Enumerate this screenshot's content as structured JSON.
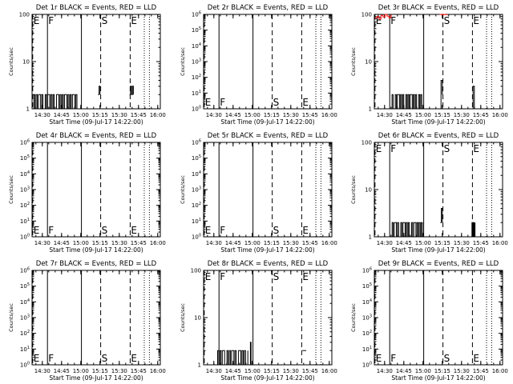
{
  "figure": {
    "x_ticks": [
      "14:30",
      "14:45",
      "15:00",
      "15:15",
      "15:30",
      "15:45",
      "16:00"
    ],
    "x_label": "Start Time (09-Jul-17 14:22:00)",
    "y_label": "Counts/sec",
    "colors": {
      "events": "#000000",
      "lld": "#ff0000",
      "background": "#ffffff"
    }
  },
  "chart_data": [
    {
      "type": "line",
      "title": "Det 1r BLACK = Events, RED = LLD",
      "yscale": "log",
      "ylim": [
        1,
        100
      ],
      "y_ticks": [
        "1",
        "10",
        "100"
      ],
      "xlim_minutes": [
        0,
        100
      ],
      "x_tick_minutes": [
        8,
        23,
        38,
        53,
        68,
        83,
        98
      ],
      "vlines": [
        {
          "label": "E",
          "x": 0.5,
          "style": "dashed"
        },
        {
          "label": "F",
          "x": 12,
          "style": "solid"
        },
        {
          "label": "S",
          "x": 53.5,
          "style": "dashed"
        },
        {
          "label": "E",
          "x": 76.5,
          "style": "dashed"
        },
        {
          "label": "",
          "x": 87.5,
          "style": "dotted"
        },
        {
          "label": "",
          "x": 91.5,
          "style": "dotted"
        },
        {
          "label": "",
          "x": 38.5,
          "style": "solid"
        }
      ],
      "series": [
        {
          "name": "Events",
          "color": "#000000",
          "segments": [
            {
              "x_start": 0.5,
              "x_end": 35,
              "values": [
                1,
                2,
                1,
                2,
                1,
                2,
                2,
                1,
                2,
                1,
                1,
                2,
                1,
                2,
                2,
                1,
                2,
                1,
                2,
                1,
                1,
                2,
                2,
                1,
                2,
                1,
                2,
                1,
                2,
                2,
                1,
                2,
                1,
                2,
                1,
                2,
                2,
                1,
                2,
                1
              ]
            },
            {
              "x_start": 51.5,
              "x_end": 53,
              "values": [
                2,
                3,
                2
              ]
            },
            {
              "x_start": 76,
              "x_end": 79,
              "values": [
                2,
                3,
                2,
                3,
                2
              ]
            }
          ]
        }
      ]
    },
    {
      "type": "line",
      "title": "Det 2r BLACK = Events, RED = LLD",
      "yscale": "log",
      "ylim": [
        1,
        1000000
      ],
      "y_ticks": [
        "10^0",
        "10^1",
        "10^2",
        "10^3",
        "10^4",
        "10^5",
        "10^6"
      ],
      "xlim_minutes": [
        0,
        100
      ],
      "x_tick_minutes": [
        8,
        23,
        38,
        53,
        68,
        83,
        98
      ],
      "vlines": [
        {
          "label": "E",
          "x": 0.5,
          "style": "dashed"
        },
        {
          "label": "F",
          "x": 12,
          "style": "solid"
        },
        {
          "label": "S",
          "x": 53.5,
          "style": "dashed"
        },
        {
          "label": "E",
          "x": 76.5,
          "style": "dashed"
        },
        {
          "label": "",
          "x": 87.5,
          "style": "dotted"
        },
        {
          "label": "",
          "x": 91.5,
          "style": "dotted"
        },
        {
          "label": "",
          "x": 38.5,
          "style": "solid"
        }
      ],
      "series": []
    },
    {
      "type": "line",
      "title": "Det 3r BLACK = Events, RED = LLD",
      "yscale": "log",
      "ylim": [
        1,
        100
      ],
      "y_ticks": [
        "1",
        "10",
        "100"
      ],
      "xlim_minutes": [
        0,
        100
      ],
      "x_tick_minutes": [
        8,
        23,
        38,
        53,
        68,
        83,
        98
      ],
      "vlines": [
        {
          "label": "E",
          "x": 0.5,
          "style": "dashed"
        },
        {
          "label": "F",
          "x": 12,
          "style": "solid"
        },
        {
          "label": "S",
          "x": 53.5,
          "style": "dashed"
        },
        {
          "label": "E",
          "x": 76.5,
          "style": "dashed"
        },
        {
          "label": "",
          "x": 87.5,
          "style": "dotted"
        },
        {
          "label": "",
          "x": 91.5,
          "style": "dotted"
        },
        {
          "label": "",
          "x": 38.5,
          "style": "solid"
        }
      ],
      "series": [
        {
          "name": "Events",
          "color": "#000000",
          "segments": [
            {
              "x_start": 13,
              "x_end": 37,
              "values": [
                1,
                2,
                1,
                1,
                2,
                1,
                2,
                2,
                1,
                2,
                1,
                2,
                1,
                1,
                2,
                1,
                2,
                1,
                2,
                2,
                1,
                2,
                1,
                2,
                1,
                1,
                2,
                1,
                2,
                1
              ]
            },
            {
              "x_start": 51,
              "x_end": 53,
              "values": [
                1,
                4,
                2
              ]
            },
            {
              "x_start": 76,
              "x_end": 78,
              "values": [
                1,
                3,
                1
              ]
            }
          ]
        },
        {
          "name": "LLD",
          "color": "#ff0000",
          "segments": [
            {
              "x_start": 0.5,
              "x_end": 13,
              "values": [
                85,
                90,
                80,
                95,
                88,
                100,
                92,
                85,
                100
              ]
            },
            {
              "x_start": 51,
              "x_end": 57,
              "values": [
                100,
                98,
                100,
                99,
                100
              ]
            }
          ]
        }
      ]
    },
    {
      "type": "line",
      "title": "Det 4r BLACK = Events, RED = LLD",
      "yscale": "log",
      "ylim": [
        1,
        1000000
      ],
      "y_ticks": [
        "10^0",
        "10^1",
        "10^2",
        "10^3",
        "10^4",
        "10^5",
        "10^6"
      ],
      "xlim_minutes": [
        0,
        100
      ],
      "x_tick_minutes": [
        8,
        23,
        38,
        53,
        68,
        83,
        98
      ],
      "vlines": [
        {
          "label": "E",
          "x": 0.5,
          "style": "dashed"
        },
        {
          "label": "F",
          "x": 12,
          "style": "solid"
        },
        {
          "label": "S",
          "x": 53.5,
          "style": "dashed"
        },
        {
          "label": "E",
          "x": 76.5,
          "style": "dashed"
        },
        {
          "label": "",
          "x": 87.5,
          "style": "dotted"
        },
        {
          "label": "",
          "x": 91.5,
          "style": "dotted"
        },
        {
          "label": "",
          "x": 38.5,
          "style": "solid"
        }
      ],
      "series": []
    },
    {
      "type": "line",
      "title": "Det 5r BLACK = Events, RED = LLD",
      "yscale": "log",
      "ylim": [
        1,
        1000000
      ],
      "y_ticks": [
        "10^0",
        "10^1",
        "10^2",
        "10^3",
        "10^4",
        "10^5",
        "10^6"
      ],
      "xlim_minutes": [
        0,
        100
      ],
      "x_tick_minutes": [
        8,
        23,
        38,
        53,
        68,
        83,
        98
      ],
      "vlines": [
        {
          "label": "E",
          "x": 0.5,
          "style": "dashed"
        },
        {
          "label": "F",
          "x": 12,
          "style": "solid"
        },
        {
          "label": "S",
          "x": 53.5,
          "style": "dashed"
        },
        {
          "label": "E",
          "x": 76.5,
          "style": "dashed"
        },
        {
          "label": "",
          "x": 87.5,
          "style": "dotted"
        },
        {
          "label": "",
          "x": 91.5,
          "style": "dotted"
        },
        {
          "label": "",
          "x": 38.5,
          "style": "solid"
        }
      ],
      "series": []
    },
    {
      "type": "line",
      "title": "Det 6r BLACK = Events, RED = LLD",
      "yscale": "log",
      "ylim": [
        1,
        100
      ],
      "y_ticks": [
        "1",
        "10",
        "100"
      ],
      "xlim_minutes": [
        0,
        100
      ],
      "x_tick_minutes": [
        8,
        23,
        38,
        53,
        68,
        83,
        98
      ],
      "vlines": [
        {
          "label": "E",
          "x": 0.5,
          "style": "dashed"
        },
        {
          "label": "F",
          "x": 12,
          "style": "solid"
        },
        {
          "label": "S",
          "x": 53.5,
          "style": "dashed"
        },
        {
          "label": "E",
          "x": 76.5,
          "style": "dashed"
        },
        {
          "label": "",
          "x": 87.5,
          "style": "dotted"
        },
        {
          "label": "",
          "x": 91.5,
          "style": "dotted"
        },
        {
          "label": "",
          "x": 38.5,
          "style": "solid"
        }
      ],
      "series": [
        {
          "name": "Events",
          "color": "#000000",
          "segments": [
            {
              "x_start": 13,
              "x_end": 37.5,
              "values": [
                1,
                2,
                1,
                2,
                2,
                1,
                2,
                1,
                1,
                2,
                1,
                2,
                2,
                1,
                2,
                1,
                2,
                1,
                1,
                2,
                1,
                2,
                2,
                1,
                2,
                1,
                2,
                1,
                2,
                1
              ]
            },
            {
              "x_start": 51.5,
              "x_end": 53,
              "values": [
                2,
                4,
                2
              ]
            },
            {
              "x_start": 75.5,
              "x_end": 78.5,
              "values": [
                1,
                2,
                1,
                2,
                1,
                2
              ]
            }
          ]
        }
      ]
    },
    {
      "type": "line",
      "title": "Det 7r BLACK = Events, RED = LLD",
      "yscale": "log",
      "ylim": [
        1,
        1000000
      ],
      "y_ticks": [
        "10^0",
        "10^1",
        "10^2",
        "10^3",
        "10^4",
        "10^5",
        "10^6"
      ],
      "xlim_minutes": [
        0,
        100
      ],
      "x_tick_minutes": [
        8,
        23,
        38,
        53,
        68,
        83,
        98
      ],
      "vlines": [
        {
          "label": "E",
          "x": 0.5,
          "style": "dashed"
        },
        {
          "label": "F",
          "x": 12,
          "style": "solid"
        },
        {
          "label": "S",
          "x": 53.5,
          "style": "dashed"
        },
        {
          "label": "E",
          "x": 76.5,
          "style": "dashed"
        },
        {
          "label": "",
          "x": 87.5,
          "style": "dotted"
        },
        {
          "label": "",
          "x": 91.5,
          "style": "dotted"
        },
        {
          "label": "",
          "x": 38.5,
          "style": "solid"
        }
      ],
      "series": []
    },
    {
      "type": "line",
      "title": "Det 8r BLACK = Events, RED = LLD",
      "yscale": "log",
      "ylim": [
        1,
        100
      ],
      "y_ticks": [
        "1",
        "10",
        "100"
      ],
      "xlim_minutes": [
        0,
        100
      ],
      "x_tick_minutes": [
        8,
        23,
        38,
        53,
        68,
        83,
        98
      ],
      "vlines": [
        {
          "label": "E",
          "x": 0.5,
          "style": "dashed"
        },
        {
          "label": "F",
          "x": 12,
          "style": "solid"
        },
        {
          "label": "S",
          "x": 53.5,
          "style": "dashed"
        },
        {
          "label": "E",
          "x": 76.5,
          "style": "dashed"
        },
        {
          "label": "",
          "x": 87.5,
          "style": "dotted"
        },
        {
          "label": "",
          "x": 91.5,
          "style": "dotted"
        },
        {
          "label": "",
          "x": 38.5,
          "style": "solid"
        }
      ],
      "series": [
        {
          "name": "Events",
          "color": "#000000",
          "segments": [
            {
              "x_start": 10,
              "x_end": 34.5,
              "values": [
                1,
                2,
                1,
                2,
                1,
                2,
                2,
                1,
                1,
                2,
                1,
                2,
                1,
                2,
                2,
                1,
                2,
                1,
                1,
                2,
                2,
                1,
                2,
                1,
                2,
                1,
                1,
                2
              ]
            },
            {
              "x_start": 36,
              "x_end": 37,
              "values": [
                1,
                3,
                1
              ]
            },
            {
              "x_start": 77,
              "x_end": 80,
              "values": [
                2,
                2,
                2
              ]
            }
          ]
        }
      ]
    },
    {
      "type": "line",
      "title": "Det 9r BLACK = Events, RED = LLD",
      "yscale": "log",
      "ylim": [
        1,
        1000000
      ],
      "y_ticks": [
        "10^0",
        "10^1",
        "10^2",
        "10^3",
        "10^4",
        "10^5",
        "10^6"
      ],
      "xlim_minutes": [
        0,
        100
      ],
      "x_tick_minutes": [
        8,
        23,
        38,
        53,
        68,
        83,
        98
      ],
      "vlines": [
        {
          "label": "E",
          "x": 0.5,
          "style": "dashed"
        },
        {
          "label": "F",
          "x": 12,
          "style": "solid"
        },
        {
          "label": "S",
          "x": 53.5,
          "style": "dashed"
        },
        {
          "label": "E",
          "x": 76.5,
          "style": "dashed"
        },
        {
          "label": "",
          "x": 87.5,
          "style": "dotted"
        },
        {
          "label": "",
          "x": 91.5,
          "style": "dotted"
        },
        {
          "label": "",
          "x": 38.5,
          "style": "solid"
        }
      ],
      "series": []
    }
  ]
}
